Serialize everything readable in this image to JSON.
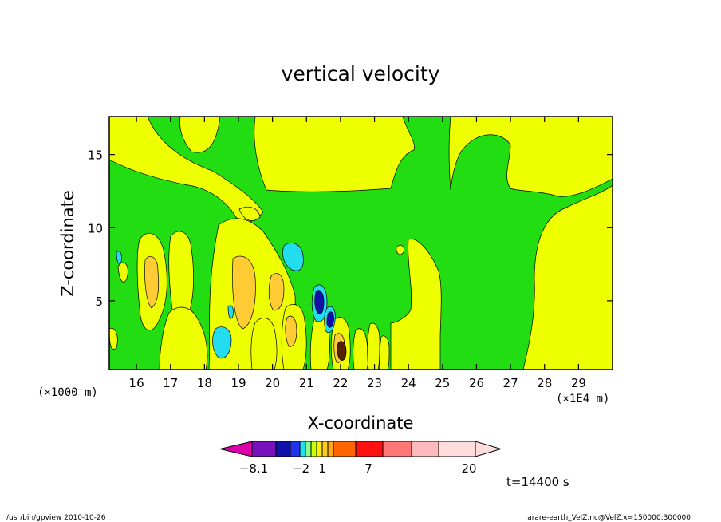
{
  "chart_data": {
    "type": "heatmap",
    "title": "vertical velocity",
    "xlabel": "X-coordinate",
    "ylabel": "Z-coordinate",
    "x_unit_left": "(×1000 m)",
    "x_unit_right": "(×1E4 m)",
    "xlim": [
      15.2,
      30.0
    ],
    "ylim": [
      0.3,
      17.6
    ],
    "x_ticks": [
      16,
      17,
      18,
      19,
      20,
      21,
      22,
      23,
      24,
      25,
      26,
      27,
      28,
      29
    ],
    "y_ticks": [
      5,
      10,
      15
    ],
    "time_label": "t=14400 s",
    "colorbar": {
      "tick_labels": [
        "−8.1",
        "−2",
        "1",
        "7",
        "20"
      ],
      "colors": [
        "#dd00aa",
        "#7711bb",
        "#1111aa",
        "#2233ee",
        "#22ddee",
        "#88ff88",
        "#ccff00",
        "#ffee00",
        "#ffcc22",
        "#ffaa11",
        "#ff6600",
        "#ff1111",
        "#ff7777",
        "#ffbbbb",
        "#ffdddd"
      ]
    },
    "colors": {
      "background_field": "#22dd11",
      "updraft_weak": "#eeff00",
      "updraft_moderate": "#ffcc33",
      "downdraft_weak": "#22ddee",
      "downdraft_strong": "#1111aa"
    }
  },
  "footer": {
    "left": "/usr/bin/gpview   2010-10-26",
    "right": "arare-earth_VelZ.nc@VelZ,x=150000:300000"
  }
}
